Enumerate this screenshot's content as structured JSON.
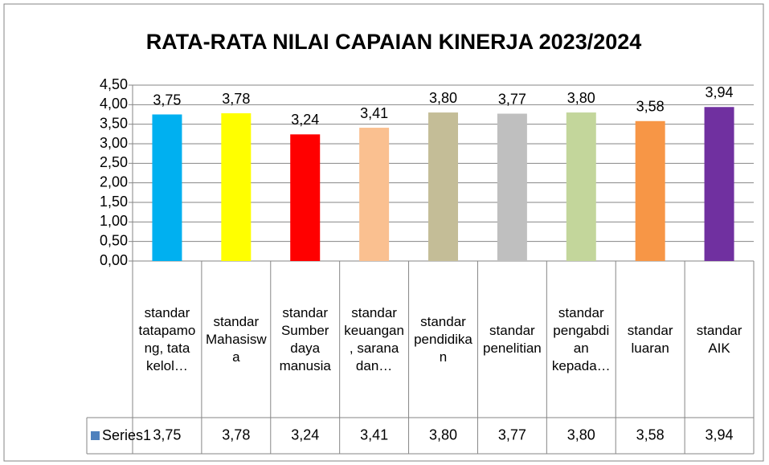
{
  "chart_data": {
    "type": "bar",
    "title": "RATA-RATA NILAI CAPAIAN KINERJA 2023/2024",
    "categories": [
      "standar tatapamong, tata kelol…",
      "standar Mahasiswa",
      "standar Sumber daya manusia",
      "standar keuangan, sarana dan…",
      "standar pendidikan",
      "standar penelitian",
      "standar pengabdian kepada…",
      "standar luaran",
      "standar AIK"
    ],
    "series": [
      {
        "name": "Series1",
        "color": "#4f81bd",
        "colors": [
          "#00b0f0",
          "#ffff00",
          "#ff0000",
          "#fac090",
          "#c4bd97",
          "#bfbfbf",
          "#c3d69b",
          "#f79646",
          "#7030a0"
        ],
        "values": [
          3.75,
          3.78,
          3.24,
          3.41,
          3.8,
          3.77,
          3.8,
          3.58,
          3.94
        ],
        "value_labels": [
          "3,75",
          "3,78",
          "3,24",
          "3,41",
          "3,80",
          "3,77",
          "3,80",
          "3,58",
          "3,94"
        ]
      }
    ],
    "ylim": [
      0,
      4.5
    ],
    "yticks": [
      {
        "value": 0,
        "label": "0,00"
      },
      {
        "value": 0.5,
        "label": "0,50"
      },
      {
        "value": 1,
        "label": "1,00"
      },
      {
        "value": 1.5,
        "label": "1,50"
      },
      {
        "value": 2,
        "label": "2,00"
      },
      {
        "value": 2.5,
        "label": "2,50"
      },
      {
        "value": 3,
        "label": "3,00"
      },
      {
        "value": 3.5,
        "label": "3,50"
      },
      {
        "value": 4,
        "label": "4,00"
      },
      {
        "value": 4.5,
        "label": "4,50"
      }
    ],
    "grid": true
  }
}
